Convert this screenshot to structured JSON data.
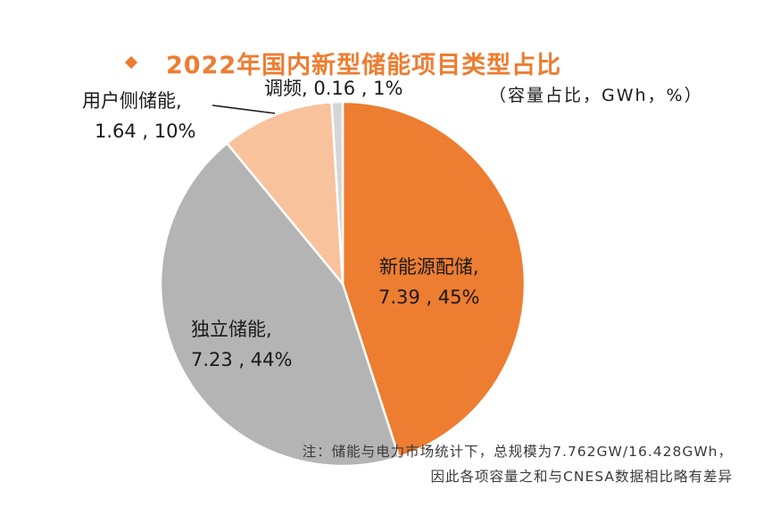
{
  "chart_data": {
    "type": "pie",
    "title": "2022年国内新型储能项目类型占比",
    "unit_note": "（容量占比，GWh，%）",
    "slices": [
      {
        "label": "新能源配储",
        "value": 7.39,
        "percent": "45%",
        "color": "#ED7D31"
      },
      {
        "label": "独立储能",
        "value": 7.23,
        "percent": "44%",
        "color": "#B4B4B4"
      },
      {
        "label": "用户侧储能",
        "value": 1.64,
        "percent": "10%",
        "color": "#F8C29C"
      },
      {
        "label": "调频",
        "value": 0.16,
        "percent": "1%",
        "color": "#D6D6D6"
      }
    ],
    "labels": {
      "renewable_line1": "新能源配储,",
      "renewable_line2": "7.39 , 45%",
      "standalone_line1": "独立储能,",
      "standalone_line2": "7.23 , 44%",
      "user_line1": "用户侧储能,",
      "user_line2": "1.64 , 10%",
      "fm_line1": "调频, 0.16 , 1%"
    },
    "legend": "none",
    "grid": false
  },
  "note": {
    "line1": "注：储能与电力市场统计下，总规模为7.762GW/16.428GWh，",
    "line2": "因此各项容量之和与CNESA数据相比略有差异"
  },
  "colors": {
    "accent": "#ED7D31"
  }
}
